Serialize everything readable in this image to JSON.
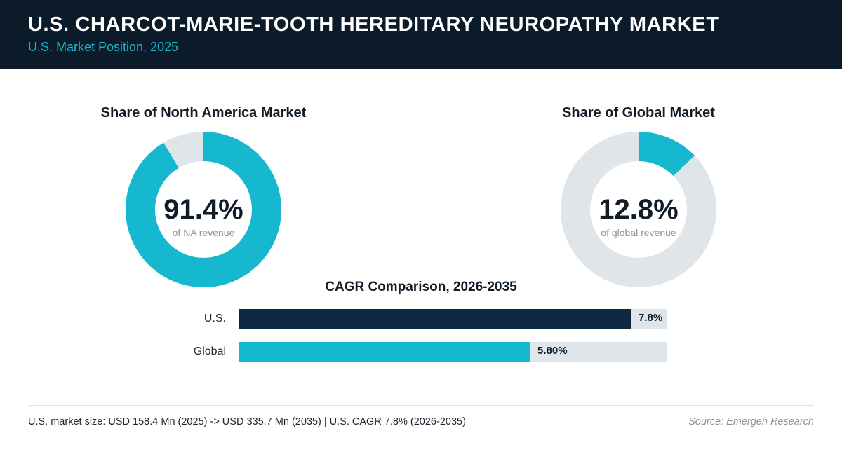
{
  "header": {
    "title": "U.S. CHARCOT-MARIE-TOOTH HEREDITARY NEUROPATHY MARKET",
    "subtitle": "U.S. Market Position, 2025"
  },
  "colors": {
    "header_bg": "#0b1b29",
    "accent": "#16b8cf",
    "navy": "#0e2a42",
    "track": "#e0e5ea"
  },
  "chart_data": [
    {
      "type": "pie",
      "title": "Share of North America Market",
      "value_label": "91.4%",
      "caption": "of NA revenue",
      "share": 91.4,
      "colors": [
        "#16b8cf",
        "#e0e5ea"
      ]
    },
    {
      "type": "pie",
      "title": "Share of Global Market",
      "value_label": "12.8%",
      "caption": "of global revenue",
      "share": 12.8,
      "colors": [
        "#16b8cf",
        "#e0e5ea"
      ]
    },
    {
      "type": "bar",
      "title": "CAGR Comparison, 2026-2035",
      "categories": [
        "U.S.",
        "Global"
      ],
      "values": [
        7.8,
        5.8
      ],
      "value_labels": [
        "7.8%",
        "5.80%"
      ],
      "xlim": [
        0,
        8.5
      ],
      "colors": [
        "#0e2a42",
        "#16b8cf"
      ]
    }
  ],
  "footer": {
    "summary": "U.S. market size: USD 158.4 Mn (2025) -> USD 335.7 Mn (2035)  |  U.S. CAGR 7.8% (2026-2035)",
    "source": "Source: Emergen Research"
  }
}
